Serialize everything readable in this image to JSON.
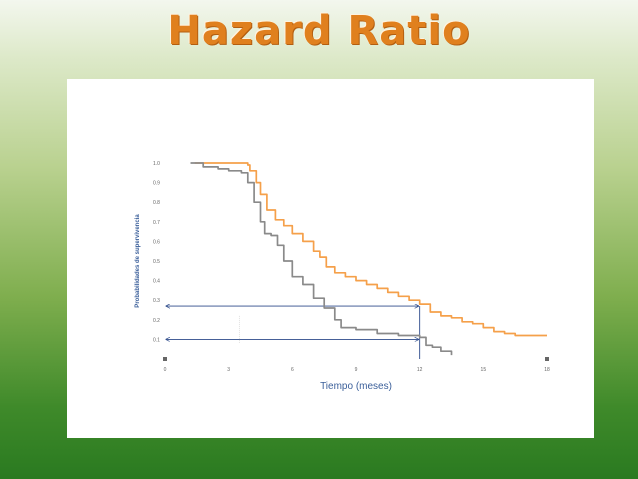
{
  "slide": {
    "title": "Hazard Ratio"
  },
  "chart_data": {
    "type": "line",
    "xlabel": "Tiempo (meses)",
    "ylabel": "Probabilidades de supervivencia",
    "xlim": [
      0,
      18
    ],
    "ylim": [
      0,
      1.0
    ],
    "x_ticks": [
      0,
      3,
      6,
      9,
      12,
      15,
      18
    ],
    "y_ticks": [
      "0.1",
      "0.2",
      "0.3",
      "0.4",
      "0.5",
      "0.6",
      "0.7",
      "0.8",
      "0.9",
      "1.0"
    ],
    "grid": false,
    "series": [
      {
        "color": "#f5a04a",
        "x": [
          1.4,
          2.0,
          2.8,
          3.6,
          3.9,
          4.0,
          4.3,
          4.5,
          4.8,
          5.2,
          5.6,
          6.0,
          6.5,
          7.0,
          7.3,
          7.6,
          8.0,
          8.5,
          9.0,
          9.5,
          10.0,
          10.5,
          11.0,
          11.5,
          12.0,
          12.5,
          13.0,
          13.5,
          14.0,
          14.5,
          15.0,
          15.5,
          16.0,
          16.5,
          17.0,
          17.5,
          18.0
        ],
        "y": [
          1.0,
          1.0,
          1.0,
          1.0,
          0.99,
          0.96,
          0.9,
          0.84,
          0.76,
          0.71,
          0.68,
          0.64,
          0.6,
          0.55,
          0.52,
          0.47,
          0.44,
          0.42,
          0.4,
          0.38,
          0.36,
          0.34,
          0.32,
          0.3,
          0.28,
          0.24,
          0.22,
          0.21,
          0.19,
          0.18,
          0.16,
          0.14,
          0.13,
          0.12,
          0.12,
          0.12,
          0.12
        ]
      },
      {
        "color": "#8a8a8a",
        "x": [
          1.2,
          1.8,
          2.5,
          3.0,
          3.6,
          3.9,
          4.2,
          4.5,
          4.7,
          5.0,
          5.3,
          5.6,
          6.0,
          6.5,
          7.0,
          7.5,
          8.0,
          8.3,
          9.0,
          10.0,
          11.0,
          11.5,
          12.0,
          12.3,
          12.6,
          13.0,
          13.5
        ],
        "y": [
          1.0,
          0.98,
          0.97,
          0.96,
          0.95,
          0.9,
          0.8,
          0.7,
          0.64,
          0.63,
          0.58,
          0.5,
          0.42,
          0.38,
          0.31,
          0.26,
          0.2,
          0.16,
          0.15,
          0.13,
          0.12,
          0.12,
          0.11,
          0.07,
          0.06,
          0.04,
          0.02
        ]
      }
    ],
    "reference_lines": [
      {
        "x": 12,
        "y": 0.27
      },
      {
        "x": 12,
        "y": 0.1
      }
    ]
  }
}
